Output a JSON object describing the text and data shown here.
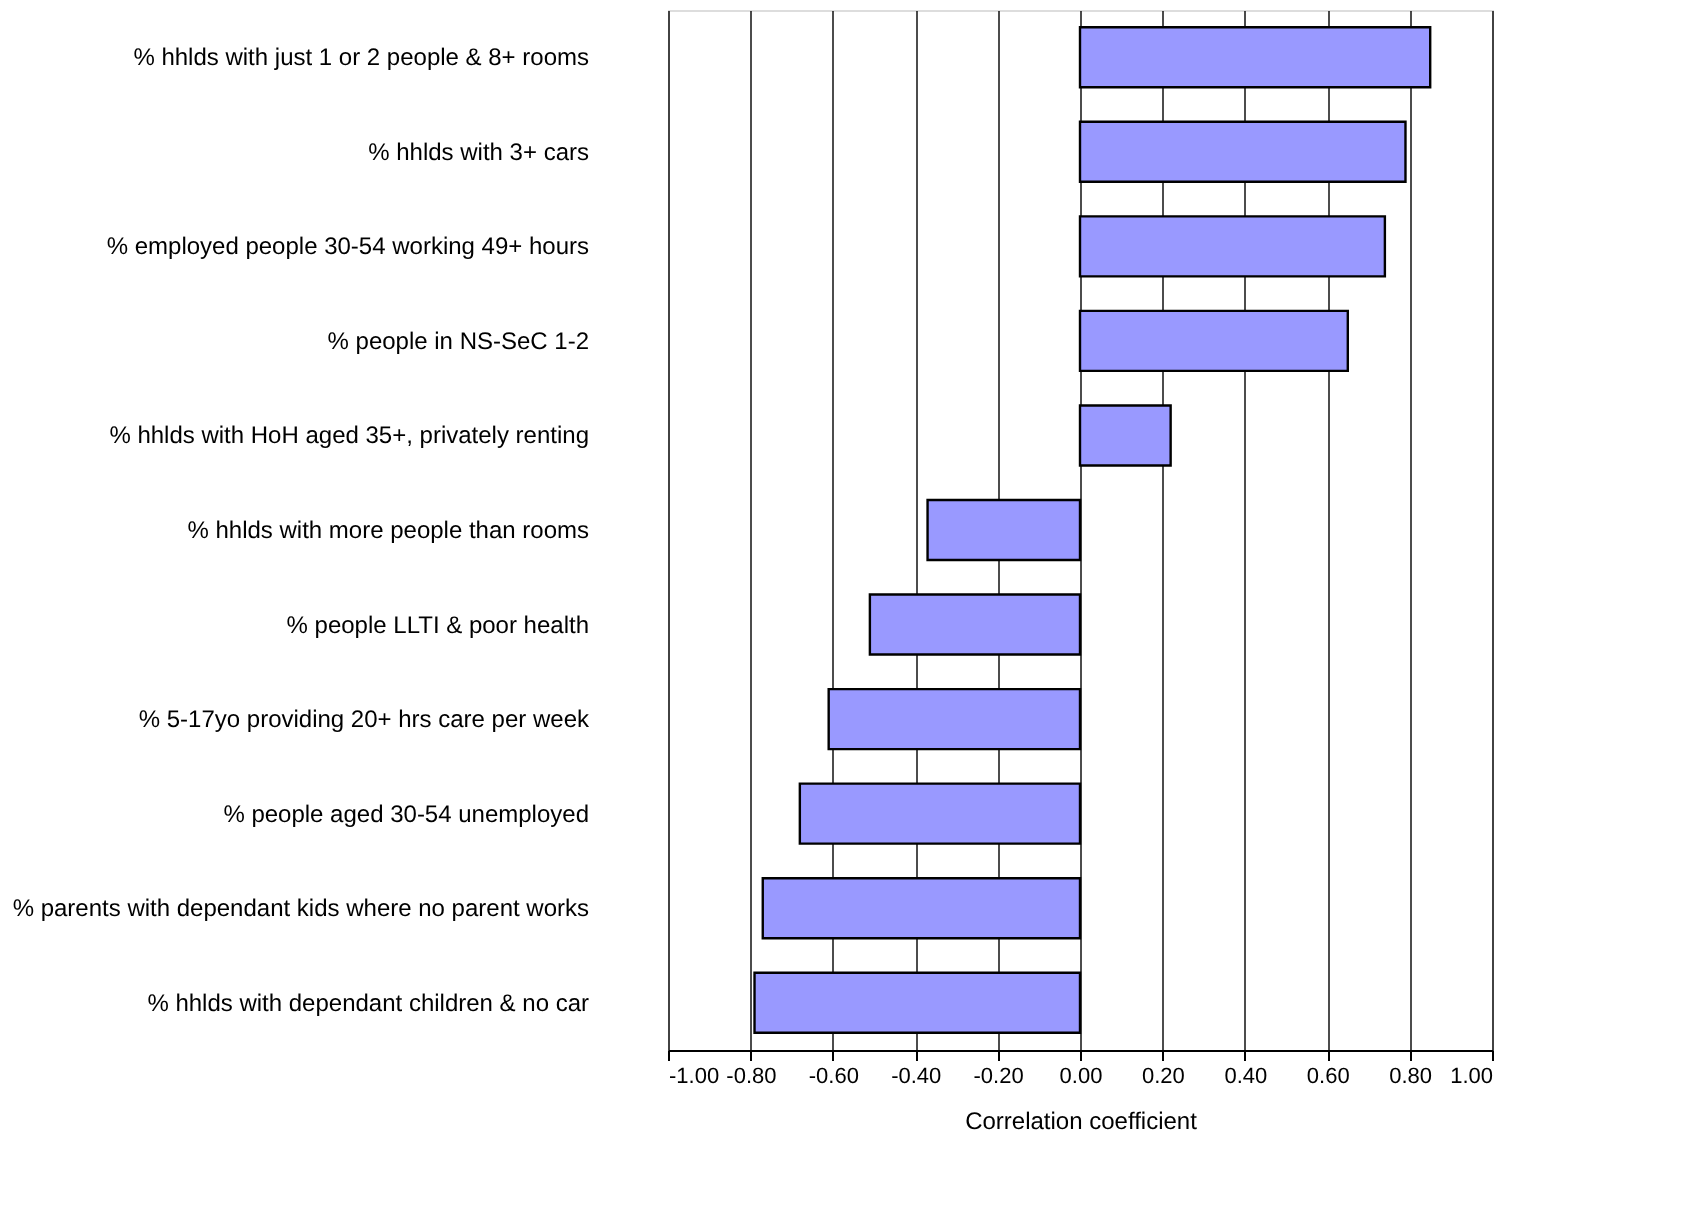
{
  "chart_data": {
    "type": "bar",
    "orientation": "horizontal",
    "xlabel": "Correlation coefficient",
    "categories": [
      "% hhlds with just 1 or 2 people & 8+ rooms",
      "% hhlds with 3+ cars",
      "% employed people 30-54 working 49+ hours",
      "% people in NS-SeC 1-2",
      "% hhlds with HoH aged 35+, privately renting",
      "% hhlds with more people than rooms",
      "% people LLTI & poor health",
      "% 5-17yo providing 20+ hrs care per week",
      "%  people aged 30-54 unemployed",
      "% parents with dependant kids where no parent works",
      "% hhlds with dependant children & no car"
    ],
    "values": [
      0.85,
      0.79,
      0.74,
      0.65,
      0.22,
      -0.37,
      -0.51,
      -0.61,
      -0.68,
      -0.77,
      -0.79
    ],
    "color": "#9999ff",
    "xlim": [
      -1,
      1
    ],
    "xticks": [
      {
        "value": -1,
        "label": "-1.00"
      },
      {
        "value": -0.8,
        "label": "-0.80"
      },
      {
        "value": -0.6,
        "label": "-0.60"
      },
      {
        "value": -0.4,
        "label": "-0.40"
      },
      {
        "value": -0.2,
        "label": "-0.20"
      },
      {
        "value": 0,
        "label": "0.00"
      },
      {
        "value": 0.2,
        "label": "0.20"
      },
      {
        "value": 0.4,
        "label": "0.40"
      },
      {
        "value": 0.6,
        "label": "0.60"
      },
      {
        "value": 0.8,
        "label": "0.80"
      },
      {
        "value": 1,
        "label": "1.00"
      }
    ],
    "grid": "x"
  }
}
